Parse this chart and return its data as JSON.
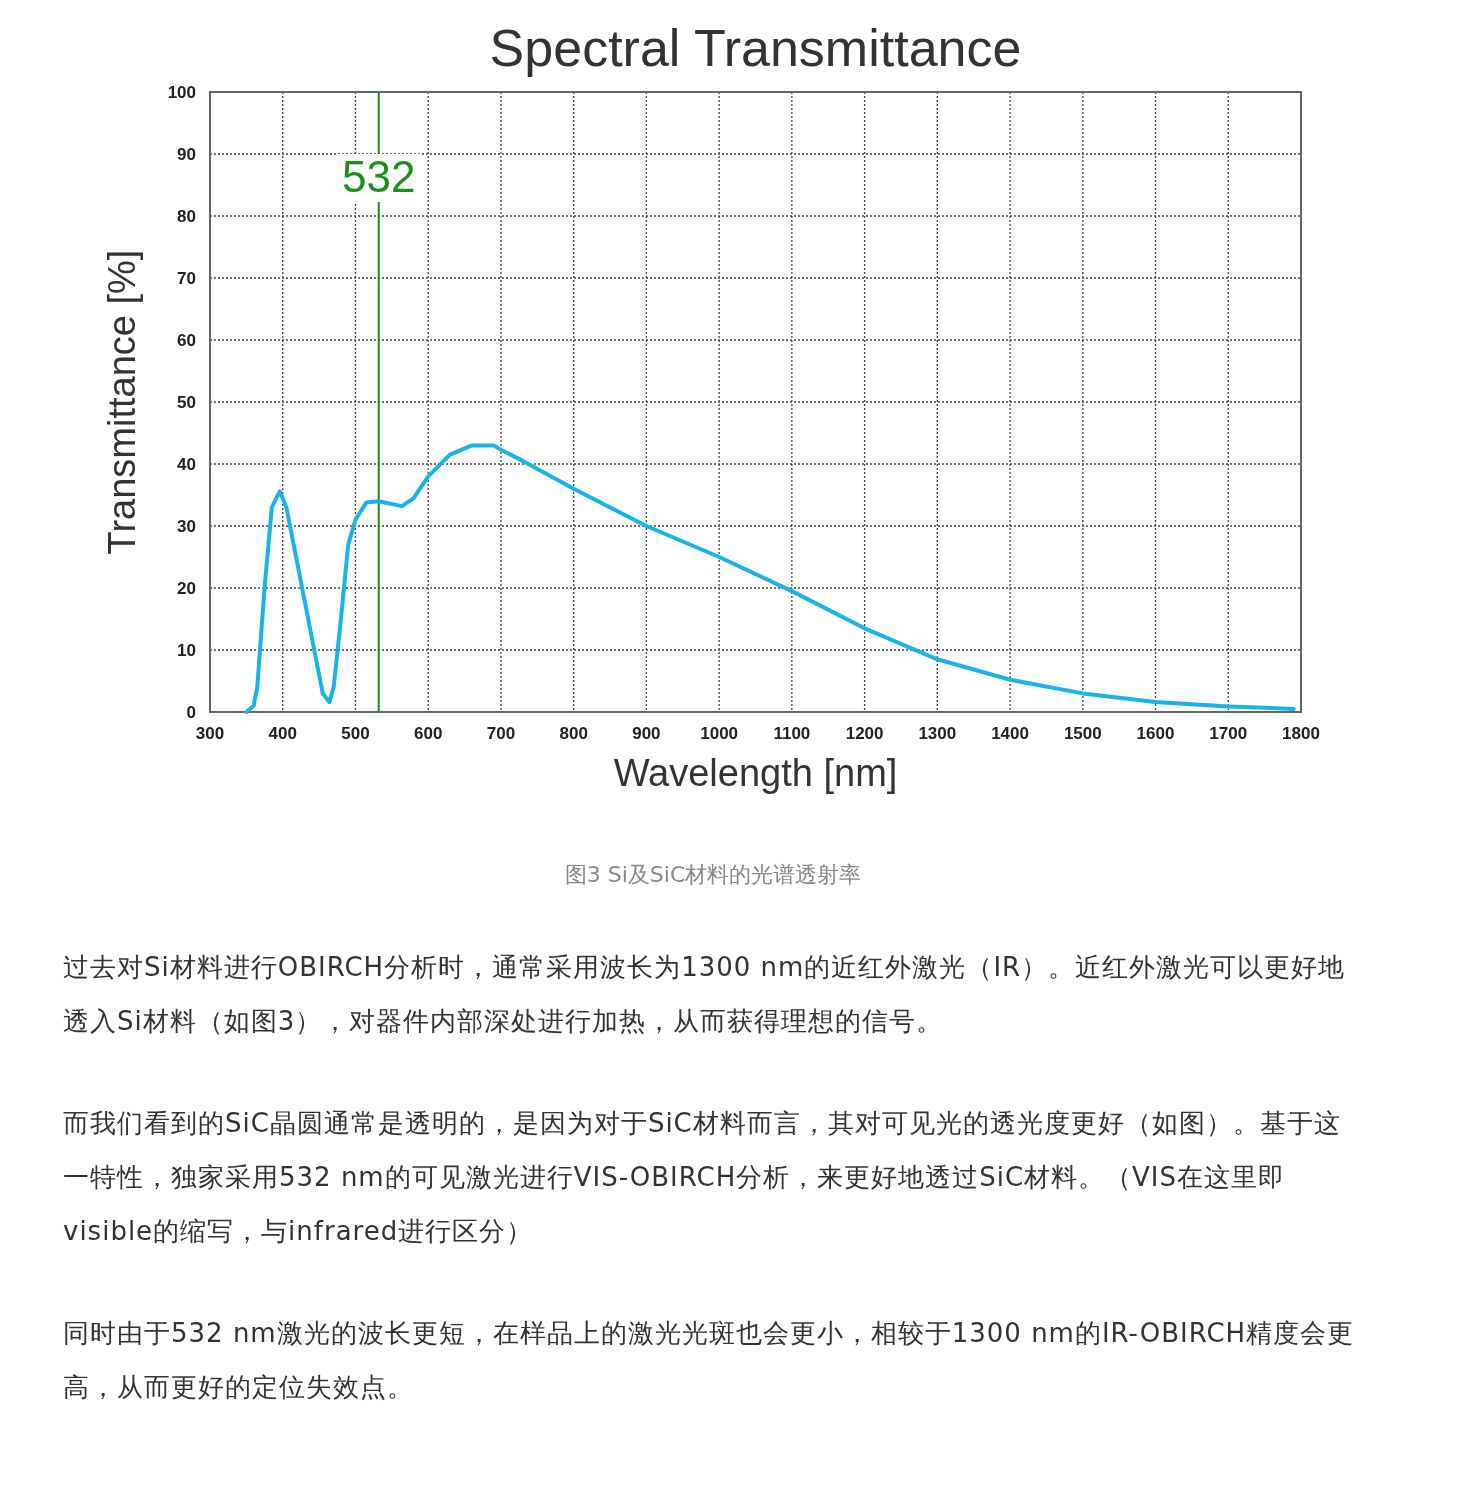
{
  "chart_data": {
    "type": "line",
    "title": "Spectral Transmittance",
    "xlabel": "Wavelength [nm]",
    "ylabel": "Transmittance [%]",
    "x": [
      350,
      360,
      365,
      375,
      385,
      396,
      405,
      420,
      440,
      455,
      464,
      470,
      480,
      490,
      500,
      515,
      532,
      564,
      580,
      600,
      630,
      660,
      690,
      700,
      730,
      800,
      900,
      1000,
      1100,
      1200,
      1300,
      1400,
      1500,
      1600,
      1700,
      1790
    ],
    "series": [
      {
        "color": "#1ab2ea",
        "values": [
          0,
          1,
          4,
          20,
          33,
          35.6,
          33,
          24,
          12,
          3,
          1.6,
          4,
          15,
          27,
          31,
          33.8,
          34,
          33.2,
          34.5,
          38,
          41.5,
          43,
          43,
          42.3,
          40.5,
          36,
          30,
          25,
          19.5,
          13.5,
          8.5,
          5.2,
          3,
          1.6,
          0.9,
          0.5
        ]
      }
    ],
    "xlim": [
      300,
      1800
    ],
    "ylim": [
      0,
      100
    ],
    "xticks": [
      300,
      400,
      500,
      600,
      700,
      800,
      900,
      1000,
      1100,
      1200,
      1300,
      1400,
      1500,
      1600,
      1700,
      1800
    ],
    "yticks": [
      0,
      10,
      20,
      30,
      40,
      50,
      60,
      70,
      80,
      90,
      100
    ],
    "grid": true,
    "ref_lines": [
      {
        "axis": "x",
        "value": 532,
        "label": "532",
        "color": "#1a8f1a"
      }
    ],
    "annotations": [
      "图3 Si及SiC材料的光谱透射率",
      "过去对Si材料进行OBIRCH分析时，通常采用波长为1300 nm的近红外激光（IR）。近红外激光可以更好地透入Si材料（如图3），对器件内部深处进行加热，从而获得理想的信号。",
      "而我们看到的SiC晶圆通常是透明的，是因为对于SiC材料而言，其对可见光的透光度更好（如图）。基于这一特性，独家采用532 nm的可见激光进行VIS-OBIRCH分析，来更好地透过SiC材料。（VIS在这里即visible的缩写，与infrared进行区分）",
      "同时由于532 nm激光的波长更短，在样品上的激光光斑也会更小，相较于1300 nm的IR-OBIRCH精度会更高，从而更好的定位失效点。"
    ]
  }
}
